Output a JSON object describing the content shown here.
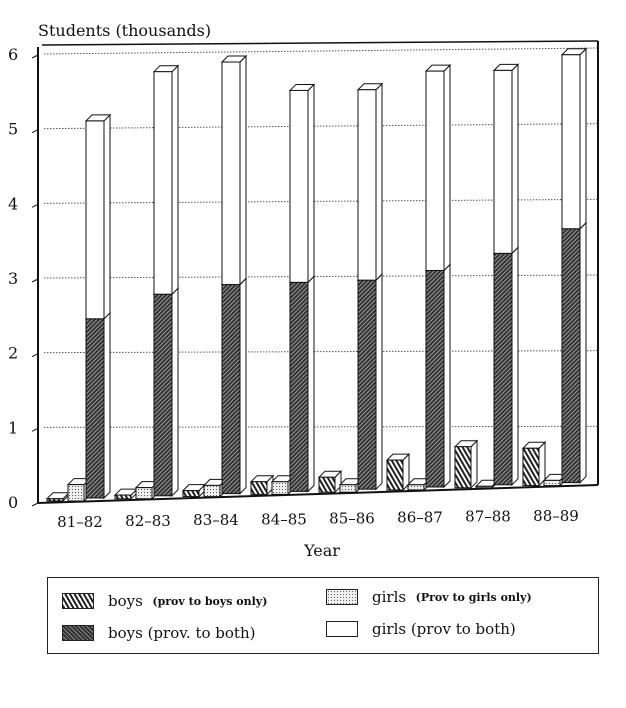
{
  "chart_data": {
    "type": "bar",
    "stacked_partial": true,
    "title": "",
    "ylabel": "Students (thousands)",
    "xlabel": "Year",
    "ylim": [
      0,
      6
    ],
    "yticks": [
      "0",
      "1",
      "2",
      "3",
      "4",
      "5",
      "6"
    ],
    "grid": true,
    "legend_position": "bottom",
    "categories": [
      "81-82",
      "82-83",
      "83-84",
      "84-85",
      "85-86",
      "86-87",
      "87-88",
      "88-89"
    ],
    "series": [
      {
        "name": "boys",
        "note": "(prov to boys only)",
        "pattern": "diagonal-light",
        "values": [
          0.03,
          0.05,
          0.08,
          0.17,
          0.2,
          0.4,
          0.55,
          0.5
        ]
      },
      {
        "name": "girls",
        "note": "(Prov to girls only)",
        "pattern": "dots",
        "values": [
          0.22,
          0.15,
          0.15,
          0.17,
          0.1,
          0.07,
          0.02,
          0.07
        ]
      },
      {
        "name": "boys (prov. to both)",
        "pattern": "dark-hatch",
        "stack": "both",
        "values": [
          2.4,
          2.7,
          2.8,
          2.8,
          2.8,
          2.9,
          3.1,
          3.4
        ]
      },
      {
        "name": "girls (prov to both)",
        "pattern": "white",
        "stack": "both",
        "values": [
          2.65,
          2.98,
          2.98,
          2.57,
          2.55,
          2.67,
          2.45,
          2.33
        ]
      }
    ]
  }
}
